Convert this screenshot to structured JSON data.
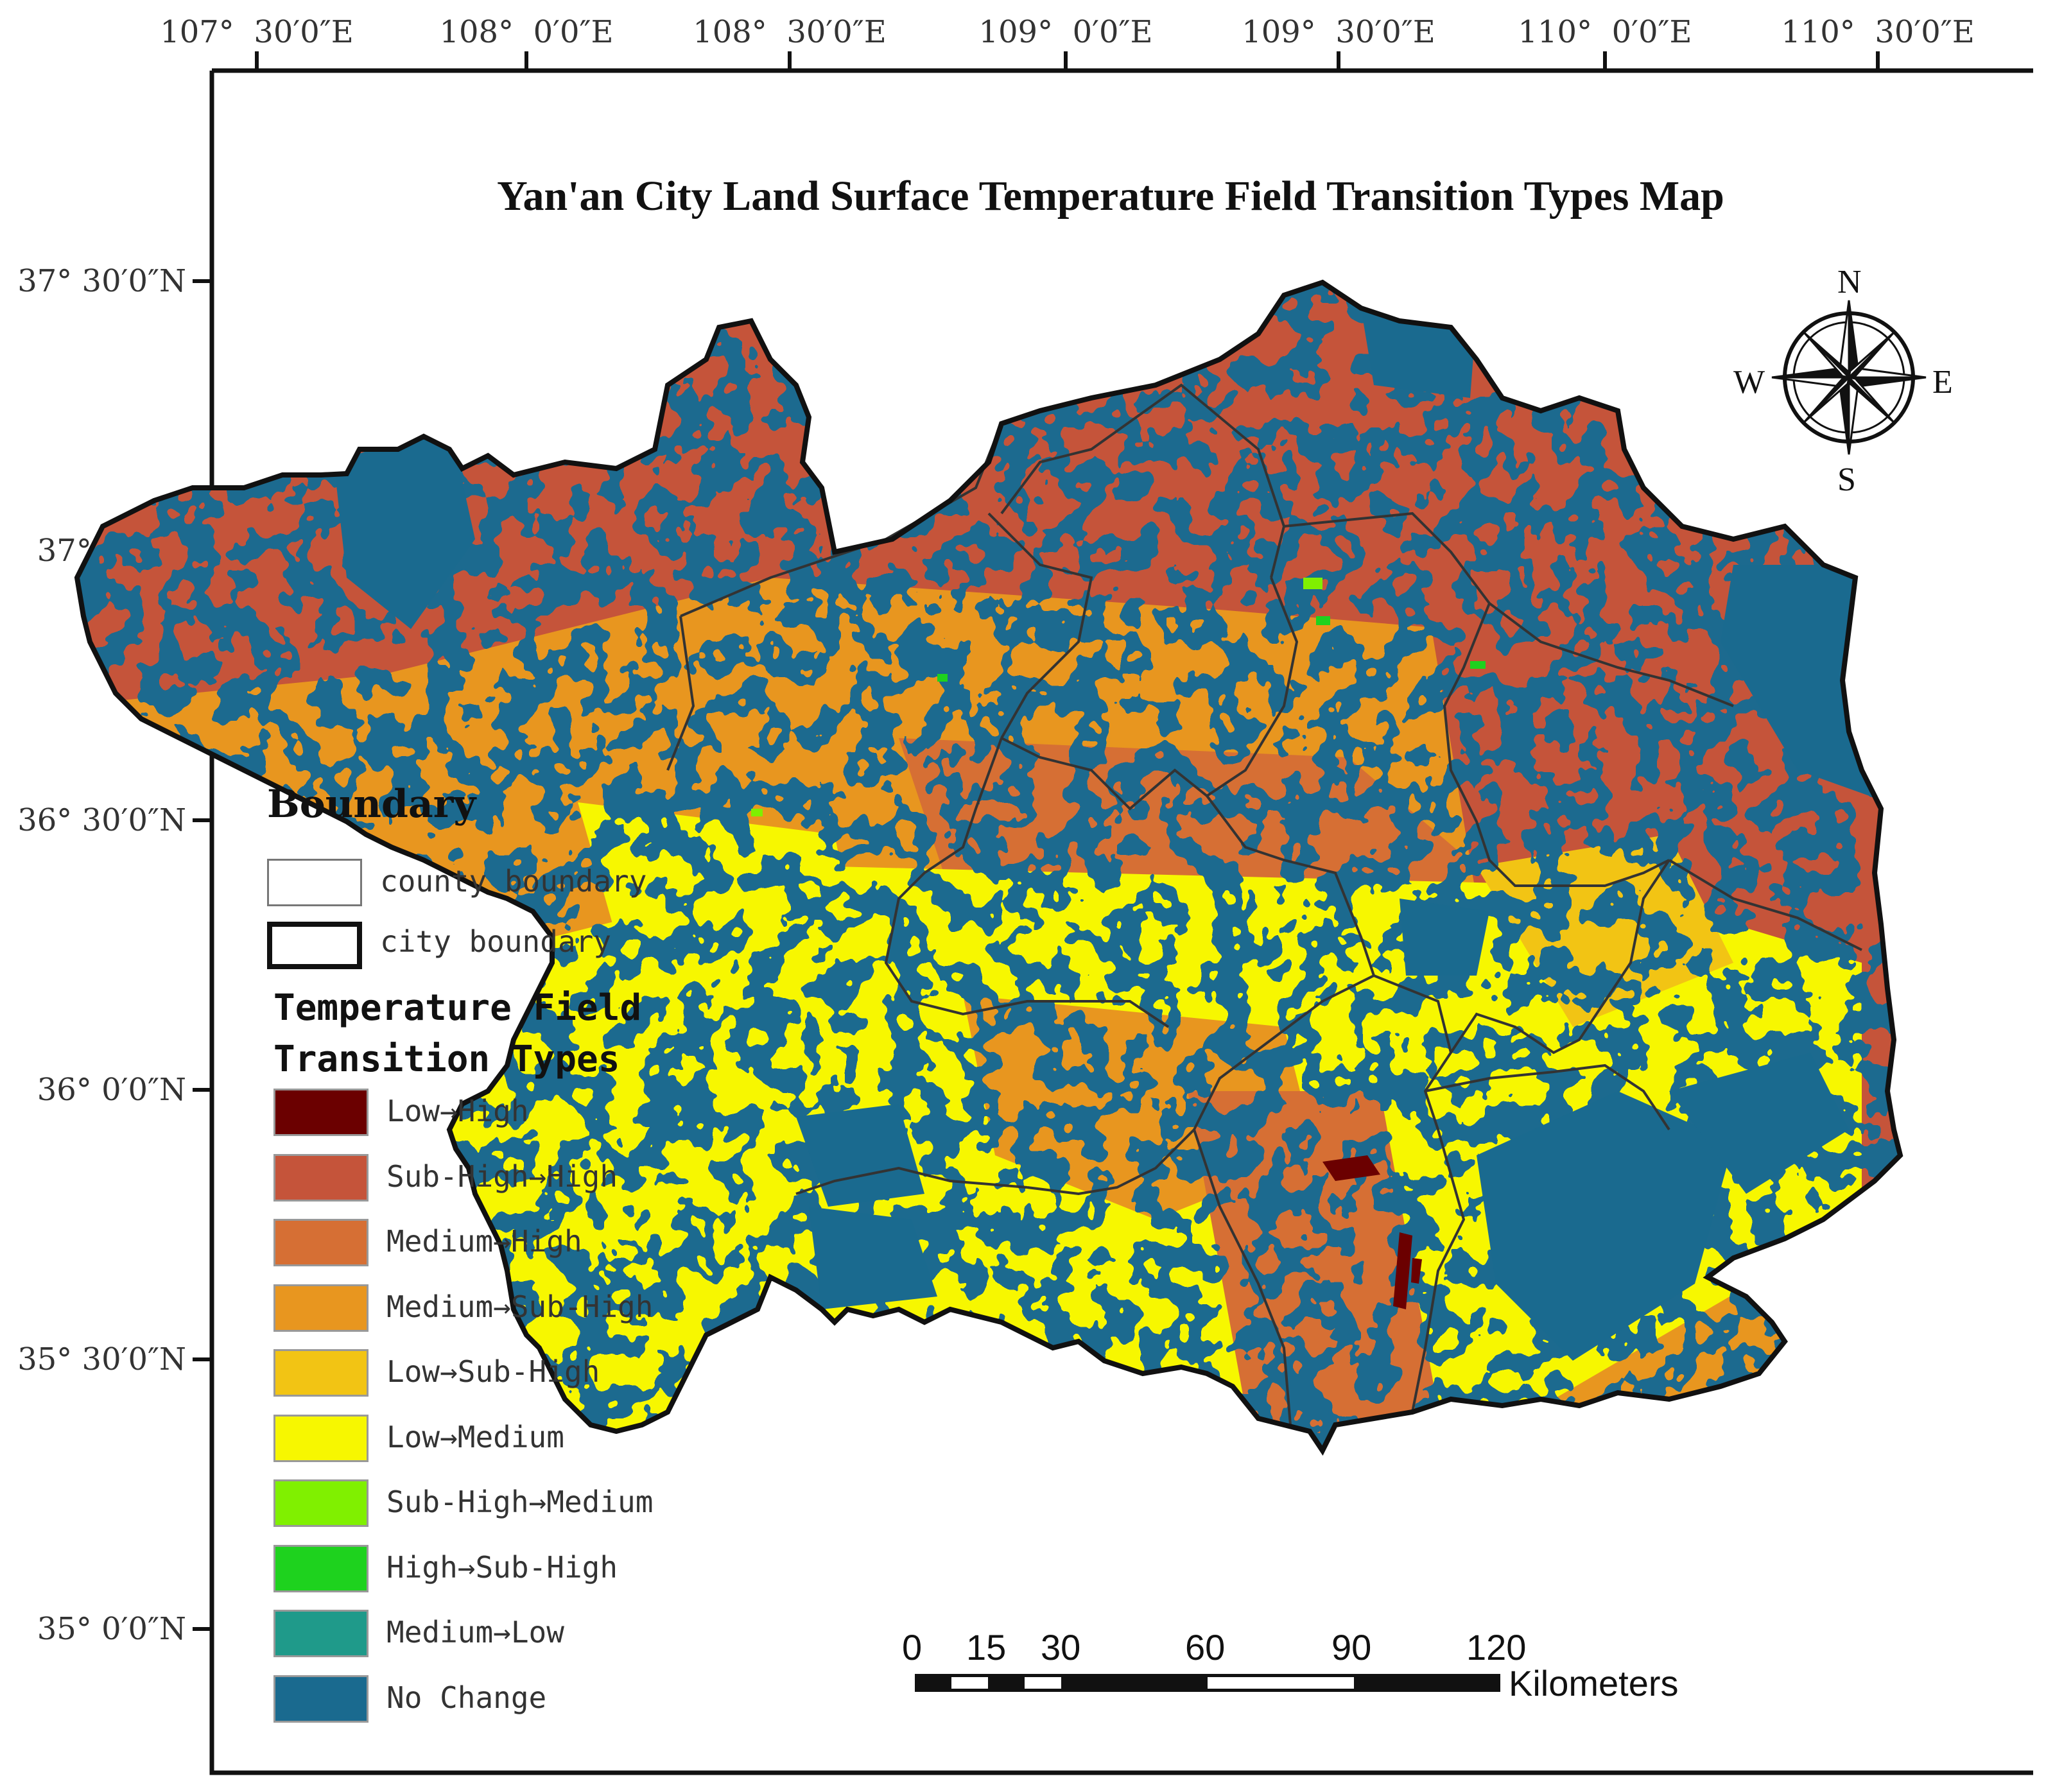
{
  "title": "Yan'an City Land Surface Temperature Field Transition Types Map",
  "longitude_labels": [
    {
      "deg": "107°",
      "min": "30′0″E"
    },
    {
      "deg": "108°",
      "min": "0′0″E"
    },
    {
      "deg": "108°",
      "min": "30′0″E"
    },
    {
      "deg": "109°",
      "min": "0′0″E"
    },
    {
      "deg": "109°",
      "min": "30′0″E"
    },
    {
      "deg": "110°",
      "min": "0′0″E"
    },
    {
      "deg": "110°",
      "min": "30′0″E"
    }
  ],
  "latitude_labels": [
    "37° 30′0″N",
    "37° 0′0″N",
    "36° 30′0″N",
    "36° 0′0″N",
    "35° 30′0″N",
    "35° 0′0″N"
  ],
  "compass": {
    "n": "N",
    "s": "S",
    "e": "E",
    "w": "W"
  },
  "legend": {
    "boundary_heading": "Boundary",
    "county_boundary": "county boundary",
    "city_boundary": "city boundary",
    "transition_heading_line1": "Temperature Field",
    "transition_heading_line2": "Transition Types",
    "items": [
      {
        "label": "Low→High",
        "color": "#6b0000"
      },
      {
        "label": "Sub-High→High",
        "color": "#c5543a"
      },
      {
        "label": "Medium→High",
        "color": "#d66f34"
      },
      {
        "label": "Medium→Sub-High",
        "color": "#e8961f"
      },
      {
        "label": "Low→Sub-High",
        "color": "#f2c414"
      },
      {
        "label": "Low→Medium",
        "color": "#f7f700"
      },
      {
        "label": "Sub-High→Medium",
        "color": "#80f000"
      },
      {
        "label": "High→Sub-High",
        "color": "#1ed21e"
      },
      {
        "label": "Medium→Low",
        "color": "#1f9a8a"
      },
      {
        "label": "No Change",
        "color": "#1a6a8f"
      }
    ]
  },
  "scale_bar": {
    "ticks": [
      "0",
      "15",
      "30",
      "60",
      "90",
      "120"
    ],
    "unit": "Kilometers"
  }
}
